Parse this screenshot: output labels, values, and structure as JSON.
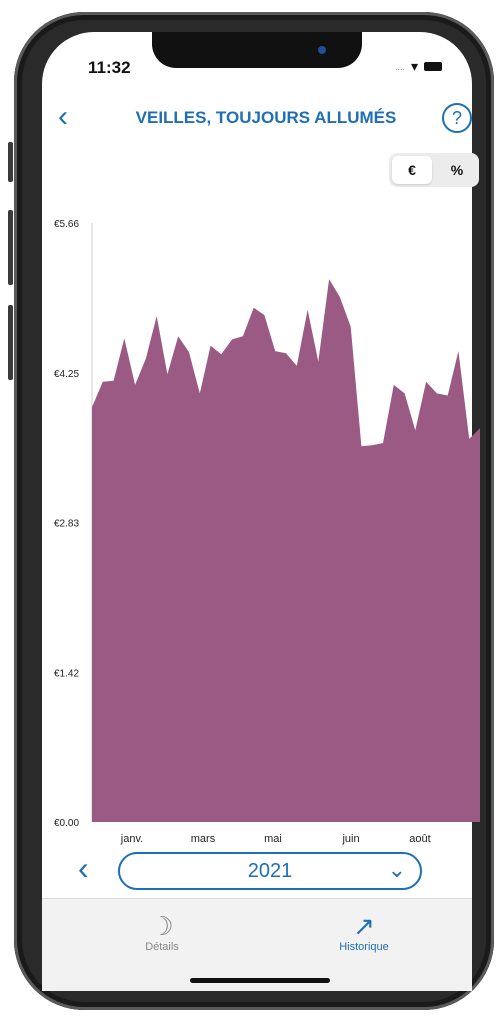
{
  "status_bar": {
    "time": "11:32",
    "signal": "....",
    "wifi_icon": "wifi-icon",
    "battery_icon": "battery-icon"
  },
  "header": {
    "title": "VEILLES, TOUJOURS ALLUMÉS",
    "back_icon": "chevron-left-icon",
    "help_icon": "question-icon"
  },
  "toggle": {
    "euro_label": "€",
    "percent_label": "%",
    "selected": "€"
  },
  "chart_data": {
    "type": "area",
    "color": "#9b5a84",
    "yticks": [
      "€5.66",
      "€4.25",
      "€2.83",
      "€1.42",
      "€0.00"
    ],
    "ylim": [
      0,
      5.66
    ],
    "xtick_labels": [
      "janv.",
      "mars",
      "mai",
      "juin",
      "août"
    ],
    "values": [
      3.92,
      4.16,
      4.17,
      4.57,
      4.13,
      4.38,
      4.78,
      4.23,
      4.59,
      4.44,
      4.05,
      4.5,
      4.42,
      4.56,
      4.59,
      4.86,
      4.79,
      4.45,
      4.43,
      4.31,
      4.84,
      4.35,
      5.13,
      4.96,
      4.68,
      3.55,
      3.56,
      3.58,
      4.13,
      4.05,
      3.7,
      4.16,
      4.05,
      4.03,
      4.45,
      3.62,
      3.72
    ]
  },
  "year_picker": {
    "year": "2021",
    "prev_icon": "chevron-left-icon",
    "dropdown_icon": "chevron-down-icon"
  },
  "tabs": [
    {
      "label": "Détails",
      "icon": "moon-power-icon"
    },
    {
      "label": "Historique",
      "icon": "trend-chart-icon"
    }
  ]
}
